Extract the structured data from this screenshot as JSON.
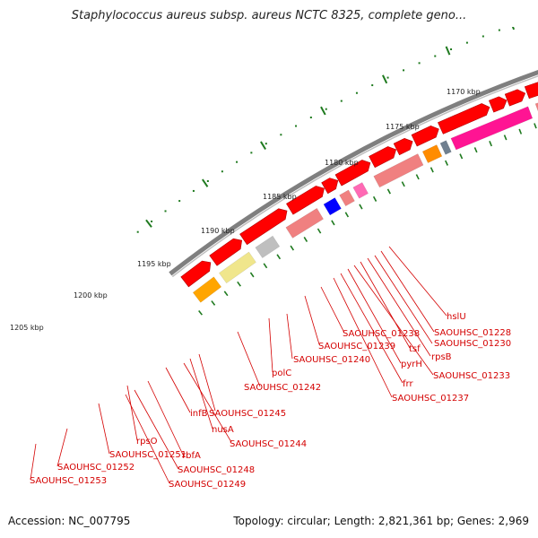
{
  "title": "Staphylococcus aureus subsp. aureus NCTC 8325, complete geno...",
  "footer": {
    "accession": "Accession: NC_007795",
    "summary": "Topology: circular; Length: 2,821,361 bp; Genes: 2,969"
  },
  "ruler": {
    "unit": "kbp",
    "ticks": [
      "1170 kbp",
      "1175 kbp",
      "1180 kbp",
      "1185 kbp",
      "1190 kbp",
      "1195 kbp",
      "1200 kbp",
      "1205 kbp"
    ]
  },
  "gene_labels": [
    "hslU",
    "SAOUHSC_01228",
    "SAOUHSC_01230",
    "rpsB",
    "tsf",
    "SAOUHSC_01233",
    "SAOUHSC_01238",
    "pyrH",
    "SAOUHSC_01239",
    "frr",
    "SAOUHSC_01237",
    "SAOUHSC_01240",
    "polC",
    "SAOUHSC_01242",
    "SAOUHSC_01245",
    "infB",
    "nusA",
    "SAOUHSC_01244",
    "rpsO",
    "rbfA",
    "SAOUHSC_01251",
    "SAOUHSC_01248",
    "SAOUHSC_01252",
    "SAOUHSC_01249",
    "SAOUHSC_01253"
  ],
  "colors": {
    "forward_cds": "#ff0000",
    "backbone": "#7f7f7f",
    "tick": "#1f7a1f",
    "label": "#d40000"
  }
}
